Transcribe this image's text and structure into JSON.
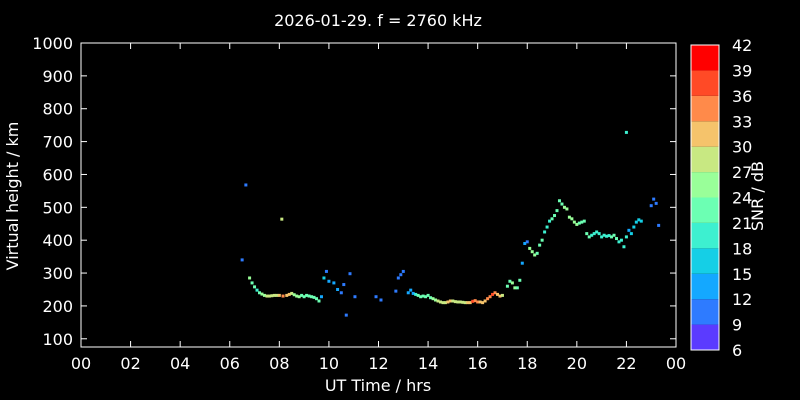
{
  "chart_data": {
    "type": "scatter",
    "title": "2026-01-29. f = 2760 kHz",
    "xlabel": "UT Time / hrs",
    "ylabel": "Virtual height / km",
    "xlim": [
      0,
      24
    ],
    "ylim": [
      75,
      1000
    ],
    "xticks": [
      "00",
      "02",
      "04",
      "06",
      "08",
      "10",
      "12",
      "14",
      "16",
      "18",
      "20",
      "22",
      "00"
    ],
    "yticks": [
      100,
      200,
      300,
      400,
      500,
      600,
      700,
      800,
      900,
      1000
    ],
    "grid": false,
    "colorbar": {
      "label": "SNR / dB",
      "ticks": [
        6,
        9,
        12,
        15,
        18,
        21,
        24,
        27,
        30,
        33,
        36,
        39,
        42
      ],
      "colors": [
        "#7f00ff",
        "#5b3bff",
        "#2e7bff",
        "#14a8ff",
        "#15cfe6",
        "#3df0d0",
        "#6cffb3",
        "#99ff99",
        "#c8e882",
        "#f5c36b",
        "#ff8a4a",
        "#ff4a26",
        "#ff0000"
      ]
    },
    "points": [
      [
        6.5,
        340,
        12
      ],
      [
        6.65,
        568,
        12
      ],
      [
        6.8,
        285,
        26
      ],
      [
        6.9,
        270,
        24
      ],
      [
        7.0,
        258,
        22
      ],
      [
        7.1,
        248,
        21
      ],
      [
        7.2,
        240,
        24
      ],
      [
        7.3,
        236,
        26
      ],
      [
        7.4,
        232,
        27
      ],
      [
        7.5,
        230,
        28
      ],
      [
        7.6,
        230,
        29
      ],
      [
        7.7,
        231,
        30
      ],
      [
        7.8,
        232,
        30
      ],
      [
        7.9,
        232,
        30
      ],
      [
        8.0,
        232,
        31
      ],
      [
        8.1,
        464,
        28
      ],
      [
        8.15,
        230,
        34
      ],
      [
        8.3,
        232,
        33
      ],
      [
        8.4,
        235,
        31
      ],
      [
        8.5,
        238,
        28
      ],
      [
        8.6,
        234,
        27
      ],
      [
        8.7,
        230,
        26
      ],
      [
        8.8,
        228,
        25
      ],
      [
        8.9,
        232,
        24
      ],
      [
        9.0,
        228,
        24
      ],
      [
        9.1,
        232,
        24
      ],
      [
        9.2,
        230,
        24
      ],
      [
        9.3,
        228,
        24
      ],
      [
        9.4,
        226,
        24
      ],
      [
        9.5,
        222,
        24
      ],
      [
        9.6,
        215,
        24
      ],
      [
        9.7,
        228,
        14
      ],
      [
        9.8,
        285,
        18
      ],
      [
        9.9,
        305,
        12
      ],
      [
        10.0,
        275,
        15
      ],
      [
        10.2,
        270,
        15
      ],
      [
        10.35,
        250,
        14
      ],
      [
        10.5,
        240,
        12
      ],
      [
        10.6,
        265,
        12
      ],
      [
        10.7,
        172,
        10
      ],
      [
        10.85,
        298,
        12
      ],
      [
        11.05,
        228,
        12
      ],
      [
        11.9,
        228,
        12
      ],
      [
        12.1,
        218,
        12
      ],
      [
        12.7,
        245,
        12
      ],
      [
        12.8,
        285,
        12
      ],
      [
        12.9,
        295,
        12
      ],
      [
        13.0,
        305,
        12
      ],
      [
        13.2,
        240,
        14
      ],
      [
        13.3,
        248,
        14
      ],
      [
        13.4,
        238,
        15
      ],
      [
        13.5,
        235,
        20
      ],
      [
        13.6,
        232,
        22
      ],
      [
        13.7,
        228,
        24
      ],
      [
        13.8,
        230,
        24
      ],
      [
        13.9,
        228,
        24
      ],
      [
        14.0,
        232,
        24
      ],
      [
        14.1,
        225,
        24
      ],
      [
        14.2,
        222,
        26
      ],
      [
        14.3,
        218,
        27
      ],
      [
        14.4,
        215,
        28
      ],
      [
        14.5,
        212,
        29
      ],
      [
        14.6,
        210,
        30
      ],
      [
        14.7,
        210,
        30
      ],
      [
        14.8,
        212,
        31
      ],
      [
        14.9,
        215,
        31
      ],
      [
        15.0,
        215,
        30
      ],
      [
        15.1,
        213,
        30
      ],
      [
        15.2,
        212,
        30
      ],
      [
        15.3,
        212,
        30
      ],
      [
        15.4,
        211,
        30
      ],
      [
        15.5,
        210,
        30
      ],
      [
        15.6,
        210,
        31
      ],
      [
        15.7,
        210,
        33
      ],
      [
        15.8,
        214,
        38
      ],
      [
        15.9,
        216,
        36
      ],
      [
        16.0,
        212,
        35
      ],
      [
        16.1,
        212,
        33
      ],
      [
        16.2,
        210,
        33
      ],
      [
        16.3,
        215,
        33
      ],
      [
        16.4,
        222,
        34
      ],
      [
        16.5,
        228,
        36
      ],
      [
        16.6,
        235,
        38
      ],
      [
        16.7,
        240,
        36
      ],
      [
        16.8,
        235,
        33
      ],
      [
        16.9,
        230,
        31
      ],
      [
        17.0,
        232,
        28
      ],
      [
        17.2,
        260,
        24
      ],
      [
        17.3,
        275,
        24
      ],
      [
        17.4,
        270,
        26
      ],
      [
        17.5,
        255,
        27
      ],
      [
        17.6,
        255,
        24
      ],
      [
        17.7,
        278,
        22
      ],
      [
        17.8,
        330,
        15
      ],
      [
        17.9,
        390,
        15
      ],
      [
        18.0,
        395,
        12
      ],
      [
        18.1,
        375,
        26
      ],
      [
        18.2,
        365,
        26
      ],
      [
        18.3,
        355,
        26
      ],
      [
        18.4,
        360,
        24
      ],
      [
        18.5,
        385,
        24
      ],
      [
        18.6,
        400,
        22
      ],
      [
        18.7,
        425,
        21
      ],
      [
        18.8,
        440,
        21
      ],
      [
        18.9,
        458,
        21
      ],
      [
        19.0,
        465,
        22
      ],
      [
        19.1,
        475,
        23
      ],
      [
        19.2,
        490,
        23
      ],
      [
        19.3,
        520,
        24
      ],
      [
        19.4,
        510,
        24
      ],
      [
        19.5,
        500,
        25
      ],
      [
        19.6,
        495,
        26
      ],
      [
        19.7,
        470,
        27
      ],
      [
        19.8,
        465,
        27
      ],
      [
        19.9,
        455,
        26
      ],
      [
        20.0,
        448,
        25
      ],
      [
        20.1,
        452,
        24
      ],
      [
        20.2,
        455,
        24
      ],
      [
        20.3,
        458,
        24
      ],
      [
        20.4,
        420,
        22
      ],
      [
        20.5,
        410,
        22
      ],
      [
        20.6,
        415,
        21
      ],
      [
        20.7,
        420,
        21
      ],
      [
        20.8,
        425,
        21
      ],
      [
        20.9,
        420,
        21
      ],
      [
        21.0,
        410,
        21
      ],
      [
        21.1,
        415,
        21
      ],
      [
        21.2,
        412,
        21
      ],
      [
        21.3,
        414,
        21
      ],
      [
        21.4,
        410,
        22
      ],
      [
        21.5,
        415,
        22
      ],
      [
        21.6,
        405,
        22
      ],
      [
        21.7,
        395,
        21
      ],
      [
        21.8,
        400,
        21
      ],
      [
        21.9,
        380,
        21
      ],
      [
        22.0,
        410,
        21
      ],
      [
        22.0,
        728,
        19
      ],
      [
        22.1,
        430,
        15
      ],
      [
        22.2,
        420,
        16
      ],
      [
        22.3,
        440,
        18
      ],
      [
        22.4,
        455,
        18
      ],
      [
        22.5,
        462,
        18
      ],
      [
        22.6,
        458,
        18
      ],
      [
        23.0,
        505,
        12
      ],
      [
        23.1,
        525,
        12
      ],
      [
        23.2,
        512,
        12
      ],
      [
        23.3,
        445,
        12
      ]
    ]
  }
}
